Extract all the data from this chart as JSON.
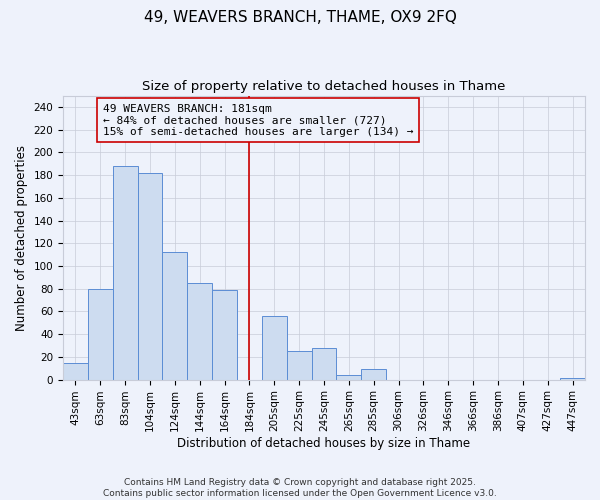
{
  "title": "49, WEAVERS BRANCH, THAME, OX9 2FQ",
  "subtitle": "Size of property relative to detached houses in Thame",
  "xlabel": "Distribution of detached houses by size in Thame",
  "ylabel": "Number of detached properties",
  "bin_labels": [
    "43sqm",
    "63sqm",
    "83sqm",
    "104sqm",
    "124sqm",
    "144sqm",
    "164sqm",
    "184sqm",
    "205sqm",
    "225sqm",
    "245sqm",
    "265sqm",
    "285sqm",
    "306sqm",
    "326sqm",
    "346sqm",
    "366sqm",
    "386sqm",
    "407sqm",
    "427sqm",
    "447sqm"
  ],
  "bar_heights": [
    15,
    80,
    188,
    182,
    112,
    85,
    79,
    0,
    56,
    25,
    28,
    4,
    9,
    0,
    0,
    0,
    0,
    0,
    0,
    0,
    1
  ],
  "bar_color": "#cddcf0",
  "bar_edge_color": "#5b8dd4",
  "annotation_line_x_label": "184sqm",
  "annotation_line_color": "#cc0000",
  "annotation_text_line1": "49 WEAVERS BRANCH: 181sqm",
  "annotation_text_line2": "← 84% of detached houses are smaller (727)",
  "annotation_text_line3": "15% of semi-detached houses are larger (134) →",
  "annotation_box_edge_color": "#cc0000",
  "ylim": [
    0,
    250
  ],
  "yticks": [
    0,
    20,
    40,
    60,
    80,
    100,
    120,
    140,
    160,
    180,
    200,
    220,
    240
  ],
  "footer_line1": "Contains HM Land Registry data © Crown copyright and database right 2025.",
  "footer_line2": "Contains public sector information licensed under the Open Government Licence v3.0.",
  "background_color": "#eef2fb",
  "grid_color": "#c8ccd8",
  "title_fontsize": 11,
  "subtitle_fontsize": 9.5,
  "axis_label_fontsize": 8.5,
  "tick_fontsize": 7.5,
  "annotation_fontsize": 8,
  "footer_fontsize": 6.5
}
